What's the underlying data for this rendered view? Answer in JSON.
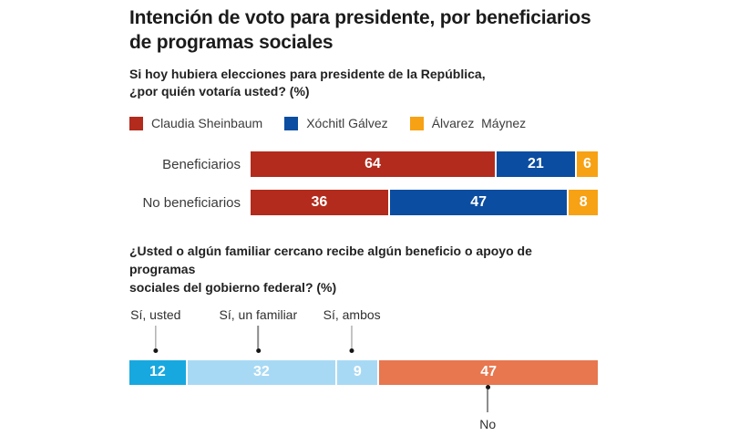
{
  "header": {
    "title_line1": "Intención de voto para presidente, por beneficiarios",
    "title_line2": "de programas sociales"
  },
  "question1": {
    "line1": "Si hoy hubiera elecciones para presidente de la República,",
    "line2": "¿por quién votaría usted?  (%)"
  },
  "question2": {
    "line1": "¿Usted o algún familiar cercano recibe algún beneficio o apoyo de programas",
    "line2": "sociales del gobierno federal? (%)"
  },
  "colors": {
    "sheinbaum_red": "#b22b1d",
    "galvez_blue": "#0b4da1",
    "maynez_orange": "#f7a114",
    "si_usted_cyan": "#18a8e0",
    "si_familiar_lightblue": "#a8d9f4",
    "no_coral": "#e8764f",
    "value_text": "#ffffff",
    "leader_line": "#8a8a8a",
    "leader_dot": "#161616"
  },
  "chart_data": [
    {
      "type": "bar",
      "orientation": "horizontal",
      "stacked": true,
      "title": "Intención de voto para presidente, por beneficiarios de programas sociales",
      "subtitle": "Si hoy hubiera elecciones para presidente de la República, ¿por quién votaría usted? (%)",
      "categories": [
        "Beneficiarios",
        "No beneficiarios"
      ],
      "series": [
        {
          "name": "Claudia Sheinbaum",
          "color": "#b22b1d",
          "values": [
            64,
            36
          ]
        },
        {
          "name": "Xóchitl Gálvez",
          "color": "#0b4da1",
          "values": [
            21,
            47
          ]
        },
        {
          "name": "Álvarez  Máynez",
          "color": "#f7a114",
          "values": [
            6,
            8
          ]
        }
      ],
      "value_labels": true,
      "legend_position": "top",
      "grid": false,
      "xlim": [
        0,
        91
      ]
    },
    {
      "type": "bar",
      "orientation": "horizontal",
      "stacked": true,
      "title": "¿Usted o algún familiar cercano recibe algún beneficio o apoyo de programas sociales del gobierno federal? (%)",
      "categories": [
        "Sí, usted",
        "Sí, un familiar",
        "Sí, ambos",
        "No"
      ],
      "values": [
        12,
        32,
        9,
        47
      ],
      "colors": [
        "#18a8e0",
        "#a8d9f4",
        "#a8d9f4",
        "#e8764f"
      ],
      "value_labels": true,
      "grid": false,
      "xlim": [
        0,
        100
      ]
    }
  ]
}
